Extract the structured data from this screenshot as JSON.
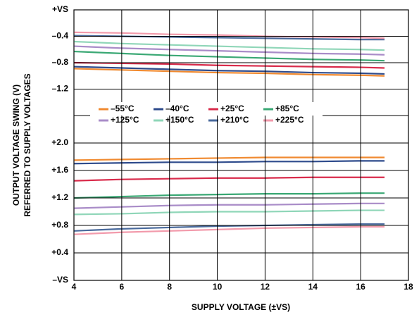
{
  "chart_data": [
    {
      "type": "line",
      "ylabel": [
        "OUTPUT VOLTAGE SWING (V)",
        "REFERRED TO SUPPLY VOLTAGES"
      ],
      "x": [
        4,
        6,
        8,
        10,
        12,
        14,
        16,
        17
      ],
      "xlim": [
        4,
        18
      ],
      "xticks": [
        4,
        6,
        8,
        10,
        12,
        14,
        16,
        18
      ],
      "ylim": [
        -1.6,
        0
      ],
      "yticks": [
        {
          "value": 0,
          "label": "+VS"
        },
        {
          "value": -0.4,
          "label": "–0.4"
        },
        {
          "value": -0.8,
          "label": "–0.8"
        },
        {
          "value": -1.2,
          "label": "–1.2"
        }
      ],
      "grid": true,
      "series": [
        {
          "name": "–55°C",
          "color": "#f08a30",
          "values": [
            -0.89,
            -0.91,
            -0.93,
            -0.95,
            -0.96,
            -0.98,
            -0.99,
            -1.0
          ]
        },
        {
          "name": "–40°C",
          "color": "#2e4b8c",
          "values": [
            -0.86,
            -0.88,
            -0.9,
            -0.92,
            -0.93,
            -0.95,
            -0.96,
            -0.97
          ]
        },
        {
          "name": "+25°C",
          "color": "#d92b4b",
          "values": [
            -0.8,
            -0.81,
            -0.82,
            -0.84,
            -0.85,
            -0.86,
            -0.87,
            -0.88
          ]
        },
        {
          "name": "+85°C",
          "color": "#3aa874",
          "values": [
            -0.63,
            -0.66,
            -0.69,
            -0.71,
            -0.73,
            -0.75,
            -0.76,
            -0.77
          ]
        },
        {
          "name": "+125°C",
          "color": "#a98cc8",
          "values": [
            -0.55,
            -0.58,
            -0.6,
            -0.62,
            -0.64,
            -0.66,
            -0.67,
            -0.68
          ]
        },
        {
          "name": "+150°C",
          "color": "#8fd6b8",
          "values": [
            -0.48,
            -0.51,
            -0.53,
            -0.55,
            -0.57,
            -0.59,
            -0.6,
            -0.61
          ]
        },
        {
          "name": "+210°C",
          "color": "#4a6a9c",
          "values": [
            -0.39,
            -0.4,
            -0.41,
            -0.42,
            -0.43,
            -0.44,
            -0.45,
            -0.45
          ]
        },
        {
          "name": "+225°C",
          "color": "#f29aab",
          "values": [
            -0.34,
            -0.35,
            -0.37,
            -0.38,
            -0.4,
            -0.41,
            -0.42,
            -0.43
          ]
        }
      ]
    },
    {
      "type": "line",
      "xlabel": "SUPPLY VOLTAGE (±VS)",
      "x": [
        4,
        6,
        8,
        10,
        12,
        14,
        16,
        17
      ],
      "xlim": [
        4,
        18
      ],
      "xticks": [
        4,
        6,
        8,
        10,
        12,
        14,
        16,
        18
      ],
      "ylim": [
        0,
        2.4
      ],
      "yticks": [
        {
          "value": 0,
          "label": "–VS"
        },
        {
          "value": 0.4,
          "label": "+0.4"
        },
        {
          "value": 0.8,
          "label": "+0.8"
        },
        {
          "value": 1.2,
          "label": "+1.2"
        },
        {
          "value": 1.6,
          "label": "+1.6"
        },
        {
          "value": 2.0,
          "label": "+2.0"
        }
      ],
      "grid": true,
      "series": [
        {
          "color": "#f08a30",
          "values": [
            1.75,
            1.76,
            1.77,
            1.78,
            1.79,
            1.79,
            1.79,
            1.79
          ]
        },
        {
          "color": "#2e4b8c",
          "values": [
            1.7,
            1.71,
            1.72,
            1.72,
            1.73,
            1.73,
            1.74,
            1.74
          ]
        },
        {
          "color": "#d92b4b",
          "values": [
            1.45,
            1.47,
            1.48,
            1.49,
            1.49,
            1.5,
            1.5,
            1.5
          ]
        },
        {
          "color": "#3aa874",
          "values": [
            1.2,
            1.22,
            1.24,
            1.25,
            1.26,
            1.26,
            1.27,
            1.27
          ]
        },
        {
          "color": "#a98cc8",
          "values": [
            1.05,
            1.07,
            1.09,
            1.1,
            1.1,
            1.11,
            1.12,
            1.12
          ]
        },
        {
          "color": "#8fd6b8",
          "values": [
            0.96,
            0.97,
            0.99,
            1.0,
            1.0,
            1.01,
            1.02,
            1.02
          ]
        },
        {
          "color": "#4a6a9c",
          "values": [
            0.72,
            0.75,
            0.77,
            0.79,
            0.8,
            0.81,
            0.82,
            0.82
          ]
        },
        {
          "color": "#f29aab",
          "values": [
            0.67,
            0.7,
            0.72,
            0.74,
            0.76,
            0.77,
            0.78,
            0.78
          ]
        }
      ]
    }
  ]
}
